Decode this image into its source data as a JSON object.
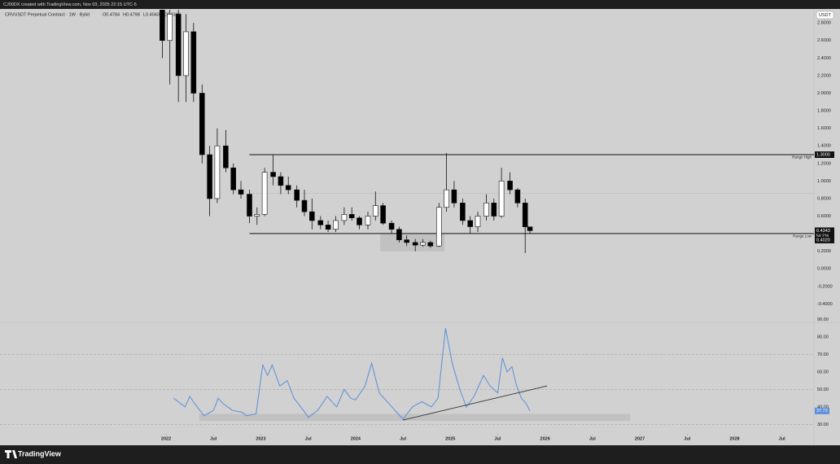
{
  "chart_data": [
    {
      "type": "candlestick",
      "title": "CRVUSDT Perpetual Contract · 1W · Bybit",
      "ohlc_legend": [
        "O0.4784",
        "H0.4798",
        "L0.4043",
        "C0.4343"
      ],
      "currency": "USDT",
      "up_color": "#ffffff",
      "down_color": "#000000",
      "x": [
        2021.96,
        2022.04,
        2022.13,
        2022.21,
        2022.29,
        2022.38,
        2022.46,
        2022.54,
        2022.63,
        2022.71,
        2022.79,
        2022.88,
        2022.96,
        2023.04,
        2023.13,
        2023.21,
        2023.29,
        2023.38,
        2023.46,
        2023.54,
        2023.63,
        2023.71,
        2023.79,
        2023.88,
        2023.96,
        2024.04,
        2024.13,
        2024.21,
        2024.29,
        2024.38,
        2024.46,
        2024.54,
        2024.63,
        2024.71,
        2024.79,
        2024.88,
        2024.96,
        2025.04,
        2025.13,
        2025.21,
        2025.29,
        2025.38,
        2025.46,
        2025.54,
        2025.63,
        2025.71,
        2025.79,
        2025.84
      ],
      "open": [
        3.0,
        2.6,
        2.9,
        2.2,
        2.7,
        2.0,
        1.3,
        0.8,
        1.4,
        1.15,
        0.9,
        0.85,
        0.6,
        0.62,
        1.1,
        1.05,
        0.95,
        0.9,
        0.78,
        0.65,
        0.55,
        0.5,
        0.45,
        0.55,
        0.62,
        0.58,
        0.5,
        0.6,
        0.72,
        0.52,
        0.45,
        0.33,
        0.3,
        0.27,
        0.3,
        0.26,
        0.7,
        0.9,
        0.75,
        0.55,
        0.48,
        0.6,
        0.75,
        0.6,
        1.0,
        0.9,
        0.75,
        0.4784
      ],
      "high": [
        3.6,
        3.2,
        3.0,
        2.9,
        2.8,
        2.1,
        1.4,
        1.6,
        1.58,
        1.2,
        1.0,
        0.9,
        0.7,
        1.15,
        1.3,
        1.1,
        1.05,
        0.95,
        0.9,
        0.8,
        0.6,
        0.55,
        0.6,
        0.7,
        0.7,
        0.6,
        0.65,
        0.88,
        0.75,
        0.55,
        0.48,
        0.38,
        0.34,
        0.34,
        0.32,
        0.75,
        1.32,
        1.0,
        0.8,
        0.6,
        0.65,
        0.85,
        0.8,
        1.15,
        1.1,
        0.92,
        0.8,
        0.4798
      ],
      "low": [
        2.4,
        2.1,
        1.9,
        1.9,
        1.9,
        1.2,
        0.6,
        0.75,
        1.1,
        0.85,
        0.8,
        0.52,
        0.5,
        0.6,
        0.95,
        0.85,
        0.85,
        0.7,
        0.6,
        0.45,
        0.45,
        0.42,
        0.42,
        0.5,
        0.55,
        0.45,
        0.45,
        0.55,
        0.5,
        0.4,
        0.3,
        0.26,
        0.2,
        0.25,
        0.24,
        0.25,
        0.65,
        0.7,
        0.5,
        0.4,
        0.42,
        0.55,
        0.55,
        0.58,
        0.85,
        0.7,
        0.18,
        0.4043
      ],
      "close": [
        2.6,
        2.9,
        2.2,
        2.7,
        2.0,
        1.3,
        0.8,
        1.4,
        1.15,
        0.9,
        0.85,
        0.6,
        0.62,
        1.1,
        1.05,
        0.95,
        0.9,
        0.78,
        0.65,
        0.55,
        0.5,
        0.45,
        0.55,
        0.62,
        0.58,
        0.5,
        0.6,
        0.72,
        0.52,
        0.45,
        0.33,
        0.3,
        0.27,
        0.3,
        0.26,
        0.7,
        0.9,
        0.75,
        0.55,
        0.48,
        0.6,
        0.75,
        0.6,
        1.0,
        0.9,
        0.75,
        0.4784,
        0.4343
      ],
      "xlim": [
        2020.247,
        2028.838
      ],
      "xticks": [
        2022,
        {
          "value": 2022.5,
          "label": "Jul"
        },
        2023,
        {
          "value": 2023.5,
          "label": "Jul"
        },
        2024,
        {
          "value": 2024.5,
          "label": "Jul"
        },
        2025,
        {
          "value": 2025.5,
          "label": "Jul"
        },
        2026,
        {
          "value": 2026.5,
          "label": "Jul"
        },
        2027,
        {
          "value": 2027.5,
          "label": "Jul"
        },
        2028,
        {
          "value": 2028.5,
          "label": "Jul"
        }
      ],
      "ylim": [
        -0.6,
        2.95
      ],
      "yticks": [
        {
          "value": 2.8,
          "label": "2.8000"
        },
        {
          "value": 2.6,
          "label": "2.6000"
        },
        {
          "value": 2.4,
          "label": "2.4000"
        },
        {
          "value": 2.2,
          "label": "2.2000"
        },
        {
          "value": 2.0,
          "label": "2.0000"
        },
        {
          "value": 1.8,
          "label": "1.8000"
        },
        {
          "value": 1.6,
          "label": "1.6000"
        },
        {
          "value": 1.4,
          "label": "1.4000"
        },
        {
          "value": 1.2,
          "label": "1.2000"
        },
        {
          "value": 1.0,
          "label": "1.0000"
        },
        {
          "value": 0.8,
          "label": "0.8000"
        },
        {
          "value": 0.6,
          "label": "0.6000"
        },
        {
          "value": 0.2,
          "label": "0.2000"
        },
        {
          "value": 0,
          "label": "0.0000"
        },
        {
          "value": -0.2,
          "label": "-0.2000"
        },
        {
          "value": -0.4,
          "label": "-0.4000"
        }
      ],
      "range_high": {
        "value": 1.3,
        "label": "1.3000",
        "text": "Range High",
        "x_start": 2022.88
      },
      "range_low": {
        "value": 0.402,
        "label": "0.4020",
        "text": "Range Low",
        "x_start": 2022.88
      },
      "mid_line": {
        "value": 0.86,
        "x_start": 2022.88
      },
      "last_price": {
        "value": 0.4343,
        "label": "0.4343",
        "countdown": "5d 21h"
      },
      "zone": {
        "x": [
          2024.26,
          2024.94
        ],
        "y": [
          0.2,
          0.4
        ]
      }
    },
    {
      "type": "line",
      "series": [
        {
          "color": "#5b8fd9",
          "x": [
            2022.08,
            2022.2,
            2022.25,
            2022.3,
            2022.4,
            2022.5,
            2022.55,
            2022.6,
            2022.7,
            2022.8,
            2022.85,
            2022.95,
            2023.02,
            2023.07,
            2023.12,
            2023.2,
            2023.28,
            2023.35,
            2023.45,
            2023.5,
            2023.6,
            2023.7,
            2023.8,
            2023.88,
            2023.95,
            2024.0,
            2024.1,
            2024.17,
            2024.25,
            2024.35,
            2024.45,
            2024.5,
            2024.6,
            2024.7,
            2024.8,
            2024.87,
            2024.92,
            2024.95,
            2025.02,
            2025.1,
            2025.17,
            2025.25,
            2025.35,
            2025.42,
            2025.5,
            2025.55,
            2025.6,
            2025.65,
            2025.7,
            2025.75,
            2025.8,
            2025.84
          ],
          "values": [
            45,
            40,
            46,
            42,
            35,
            38,
            45,
            42,
            38,
            37,
            35,
            36,
            64,
            58,
            64,
            52,
            55,
            45,
            38,
            34,
            38,
            46,
            40,
            50,
            45,
            44,
            52,
            65,
            48,
            42,
            36,
            33,
            40,
            43,
            40,
            45,
            70,
            85,
            65,
            50,
            40,
            46,
            58,
            52,
            48,
            68,
            60,
            63,
            52,
            45,
            42,
            37.73
          ]
        }
      ],
      "last_value_label": "37.73",
      "ylim": [
        26,
        93
      ],
      "yticks": [
        {
          "value": 90,
          "label": "90.00"
        },
        {
          "value": 80,
          "label": "80.00"
        },
        {
          "value": 70,
          "label": "70.00"
        },
        {
          "value": 60,
          "label": "60.00"
        },
        {
          "value": 50,
          "label": "50.00"
        },
        {
          "value": 40,
          "label": "40.00"
        },
        {
          "value": 30,
          "label": "30.00"
        }
      ],
      "levels": [
        70,
        50,
        30
      ],
      "trendline": {
        "x": [
          2024.5,
          2026.02
        ],
        "y": [
          32.5,
          52
        ]
      },
      "zone": {
        "x": [
          2022.35,
          2026.9
        ],
        "y": [
          32,
          36
        ]
      }
    }
  ],
  "header": "CJ00DX created with TradingView.com, Nov 03, 2025 22:15 UTC-5",
  "brand": "TradingView"
}
